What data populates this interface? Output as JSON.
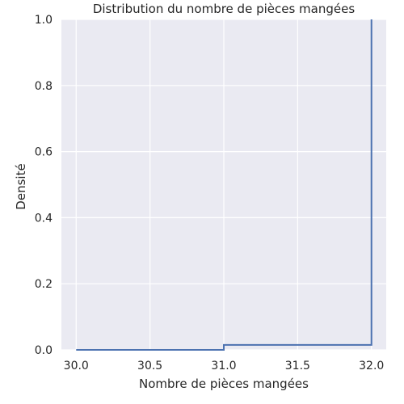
{
  "chart_data": {
    "type": "step",
    "title": "Distribution du nombre de pièces mangées",
    "xlabel": "Nombre de pièces mangées",
    "ylabel": "Densité",
    "xlim": [
      29.9,
      32.1
    ],
    "ylim": [
      0.0,
      1.0
    ],
    "x_ticks": [
      "30.0",
      "30.5",
      "31.0",
      "31.5",
      "32.0"
    ],
    "y_ticks": [
      "0.0",
      "0.2",
      "0.4",
      "0.6",
      "0.8",
      "1.0"
    ],
    "grid": true,
    "series": [
      {
        "color": "#4c72b0",
        "x": [
          30.0,
          31.0,
          31.0,
          32.0,
          32.0
        ],
        "y": [
          0.0,
          0.0,
          0.015,
          0.015,
          1.0
        ]
      }
    ],
    "colors": {
      "background": "#eaeaf2",
      "grid": "#ffffff",
      "text": "#262626"
    }
  }
}
